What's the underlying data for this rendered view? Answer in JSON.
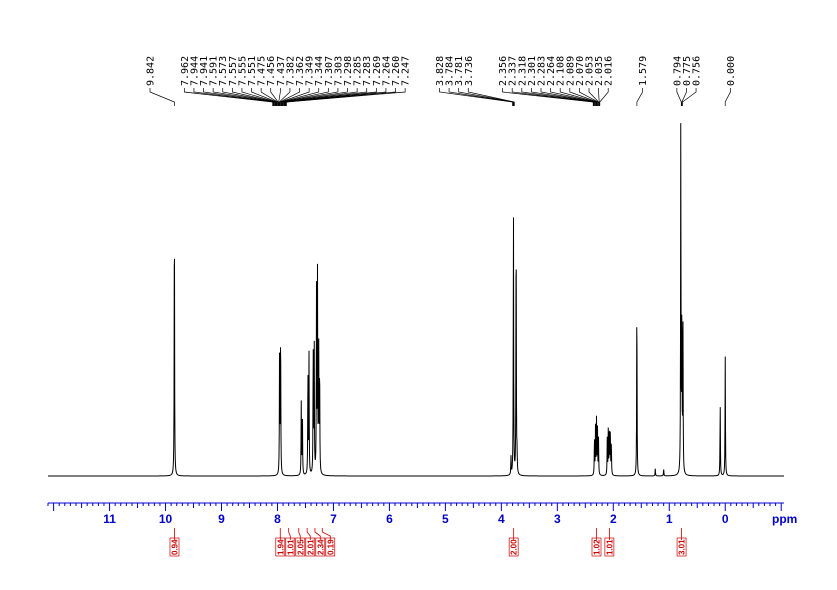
{
  "chart_data": {
    "type": "line",
    "title": "",
    "xlabel": "ppm",
    "ylabel": "",
    "x_axis": {
      "reversed": true,
      "range": [
        12.1,
        -1.05
      ],
      "tick_labels": [
        "11",
        "10",
        "9",
        "8",
        "7",
        "6",
        "5",
        "4",
        "3",
        "2",
        "1",
        "0"
      ],
      "tick_values": [
        11,
        10,
        9,
        8,
        7,
        6,
        5,
        4,
        3,
        2,
        1,
        0
      ],
      "unit_label": "ppm"
    },
    "grid": false,
    "colors": {
      "spectrum": "#000000",
      "axis": "#0000cc",
      "integral": "#cc0000"
    },
    "series": [
      {
        "peaks": [
          {
            "ppm": 9.842,
            "intensity": 0.77
          },
          {
            "ppm": 7.962,
            "intensity": 0.39
          },
          {
            "ppm": 7.944,
            "intensity": 0.41
          },
          {
            "ppm": 7.575,
            "intensity": 0.2
          },
          {
            "ppm": 7.555,
            "intensity": 0.19
          },
          {
            "ppm": 7.456,
            "intensity": 0.29
          },
          {
            "ppm": 7.437,
            "intensity": 0.33
          },
          {
            "ppm": 7.362,
            "intensity": 0.35
          },
          {
            "ppm": 7.344,
            "intensity": 0.37
          },
          {
            "ppm": 7.303,
            "intensity": 0.5
          },
          {
            "ppm": 7.285,
            "intensity": 0.54
          },
          {
            "ppm": 7.264,
            "intensity": 0.38
          },
          {
            "ppm": 7.247,
            "intensity": 0.3
          },
          {
            "ppm": 3.828,
            "intensity": 0.05
          },
          {
            "ppm": 3.784,
            "intensity": 0.75
          },
          {
            "ppm": 3.736,
            "intensity": 0.72
          },
          {
            "ppm": 3.72,
            "intensity": 0.05
          },
          {
            "ppm": 2.337,
            "intensity": 0.1
          },
          {
            "ppm": 2.318,
            "intensity": 0.13
          },
          {
            "ppm": 2.3,
            "intensity": 0.15
          },
          {
            "ppm": 2.283,
            "intensity": 0.13
          },
          {
            "ppm": 2.264,
            "intensity": 0.1
          },
          {
            "ppm": 2.108,
            "intensity": 0.1
          },
          {
            "ppm": 2.089,
            "intensity": 0.13
          },
          {
            "ppm": 2.07,
            "intensity": 0.14
          },
          {
            "ppm": 2.053,
            "intensity": 0.12
          },
          {
            "ppm": 2.035,
            "intensity": 0.09
          },
          {
            "ppm": 1.579,
            "intensity": 0.5
          },
          {
            "ppm": 1.25,
            "intensity": 0.02
          },
          {
            "ppm": 1.1,
            "intensity": 0.02
          },
          {
            "ppm": 0.794,
            "intensity": 0.98
          },
          {
            "ppm": 0.775,
            "intensity": 0.46
          },
          {
            "ppm": 0.756,
            "intensity": 0.45
          },
          {
            "ppm": 0.0,
            "intensity": 0.33
          },
          {
            "ppm": 0.09,
            "intensity": 0.2
          }
        ]
      }
    ],
    "peak_labels": {
      "groups": [
        {
          "anchor_ppm": 9.842,
          "labels": [
            "9.842"
          ]
        },
        {
          "anchor_ppm": 7.962,
          "labels": [
            "7.962",
            "7.944",
            "7.941",
            "7.591",
            "7.573",
            "7.557",
            "7.555",
            "7.551",
            "7.475",
            "7.456",
            "7.437",
            "7.382",
            "7.362",
            "7.349",
            "7.344",
            "7.307",
            "7.303",
            "7.298",
            "7.285",
            "7.283",
            "7.269",
            "7.264",
            "7.260",
            "7.247"
          ]
        },
        {
          "anchor_ppm": 3.784,
          "labels": [
            "3.828",
            "3.784",
            "3.781",
            "3.736"
          ]
        },
        {
          "anchor_ppm": 2.3,
          "labels": [
            "2.356",
            "2.337",
            "2.318",
            "2.301",
            "2.283",
            "2.264",
            "2.108",
            "2.089",
            "2.070",
            "2.053",
            "2.035",
            "2.016"
          ]
        },
        {
          "anchor_ppm": 1.579,
          "labels": [
            "1.579"
          ]
        },
        {
          "anchor_ppm": 0.775,
          "labels": [
            "0.794",
            "0.775",
            "0.756"
          ]
        },
        {
          "anchor_ppm": 0.0,
          "labels": [
            "0.000"
          ]
        }
      ]
    },
    "integrals": [
      {
        "ppm": 9.84,
        "value": "0.94"
      },
      {
        "ppm": 7.95,
        "value": "1.94"
      },
      {
        "ppm": 7.8,
        "value": "1.01"
      },
      {
        "ppm": 7.62,
        "value": "2.05"
      },
      {
        "ppm": 7.47,
        "value": "2.01"
      },
      {
        "ppm": 7.33,
        "value": "2.34"
      },
      {
        "ppm": 7.2,
        "value": "0.19"
      },
      {
        "ppm": 3.78,
        "value": "2.00"
      },
      {
        "ppm": 2.3,
        "value": "1.02"
      },
      {
        "ppm": 2.07,
        "value": "1.01"
      },
      {
        "ppm": 0.78,
        "value": "3.01"
      }
    ]
  }
}
